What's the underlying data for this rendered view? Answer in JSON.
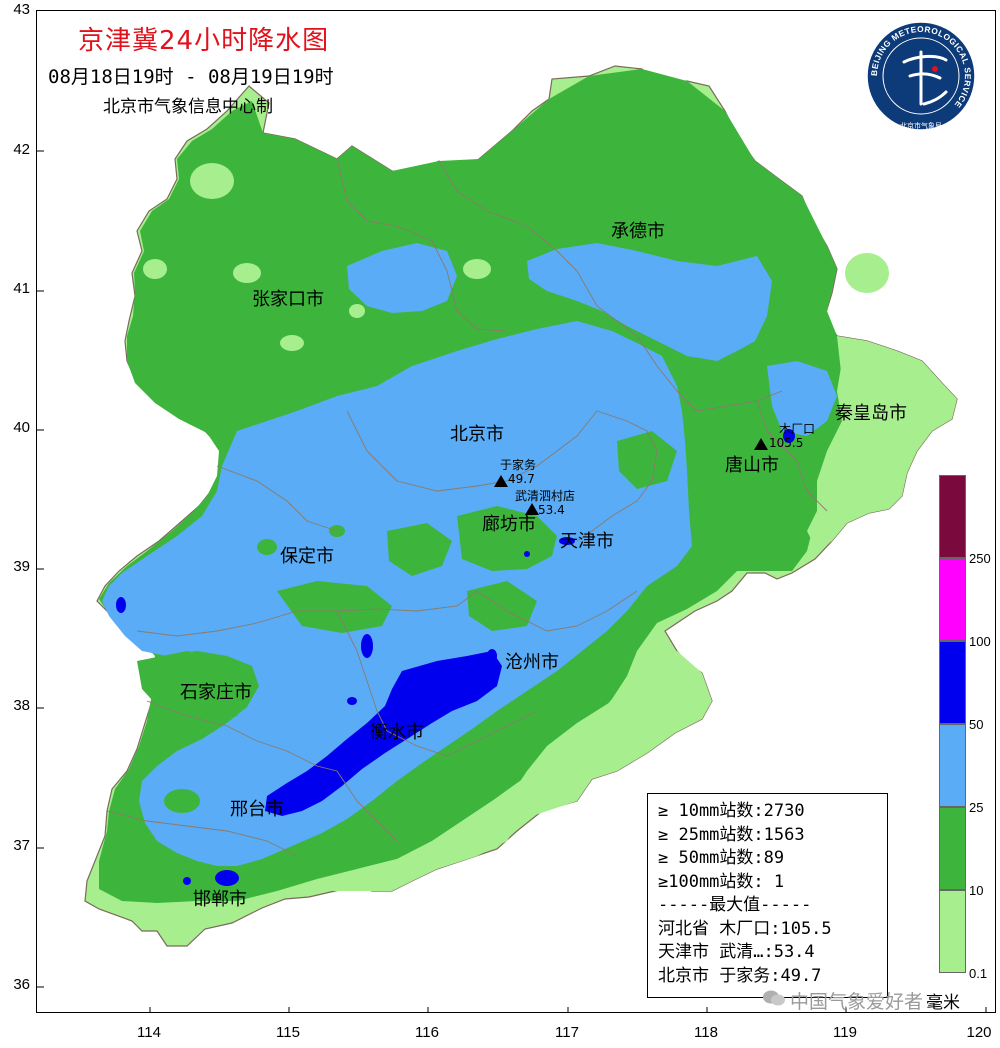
{
  "header": {
    "title": "京津冀24小时降水图",
    "period": "08月18日19时 - 08月19日19时",
    "producer": "北京市气象信息中心制"
  },
  "logo": {
    "ring_text": "BEIJING METEOROLOGICAL SERVICE",
    "inner_text": "北京市气象局"
  },
  "axes": {
    "y_ticks": [
      "43",
      "42",
      "41",
      "40",
      "39",
      "38",
      "37",
      "36"
    ],
    "x_ticks": [
      "114",
      "115",
      "116",
      "117",
      "118",
      "119",
      "120"
    ]
  },
  "cities": {
    "chengde": "承德市",
    "zhangjiakou": "张家口市",
    "qinhuangdao": "秦皇岛市",
    "beijing": "北京市",
    "tangshan": "唐山市",
    "langfang": "廊坊市",
    "tianjin": "天津市",
    "baoding": "保定市",
    "cangzhou": "沧州市",
    "shijiazhuang": "石家庄市",
    "hengshui": "衡水市",
    "xingtai": "邢台市",
    "handan": "邯郸市"
  },
  "stations": [
    {
      "name": "于家务",
      "value": "49.7"
    },
    {
      "name": "武清泗村店",
      "value": "53.4"
    },
    {
      "name": "木厂口",
      "value": "105.5"
    }
  ],
  "stats": {
    "line1": "≥ 10mm站数:2730",
    "line2": "≥ 25mm站数:1563",
    "line3": "≥ 50mm站数:89",
    "line4": "≥100mm站数: 1",
    "line5": "-----最大值-----",
    "line6": "河北省 木厂口:105.5",
    "line7": "天津市 武清…:53.4",
    "line8": "北京市 于家务:49.7"
  },
  "legend": {
    "labels": [
      "250",
      "100",
      "50",
      "25",
      "10",
      "0.1"
    ],
    "colors": {
      "c250": "#7a0a3e",
      "c100": "#ff00ff",
      "c50": "#0000ee",
      "c25": "#5aacf6",
      "c10": "#3db53d",
      "c01": "#a6ee8e"
    }
  },
  "unit": "毫米",
  "watermark": "中国气象爱好者"
}
